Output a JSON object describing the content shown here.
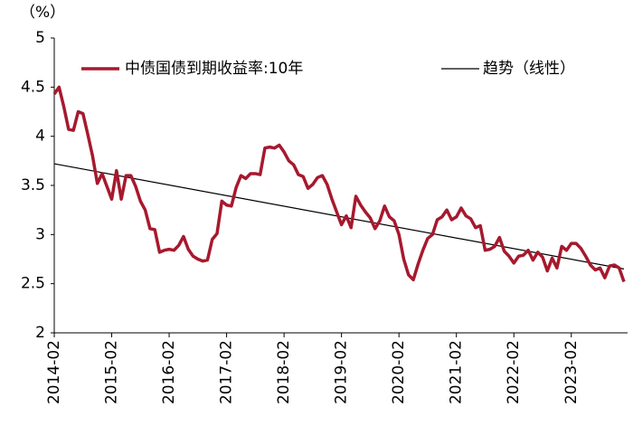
{
  "chart_data": {
    "type": "line",
    "y_label": "（%）",
    "categories": [
      "2014-02",
      null,
      null,
      null,
      null,
      null,
      null,
      null,
      null,
      null,
      null,
      null,
      "2015-02",
      null,
      null,
      null,
      null,
      null,
      null,
      null,
      null,
      null,
      null,
      null,
      "2016-02",
      null,
      null,
      null,
      null,
      null,
      null,
      null,
      null,
      null,
      null,
      null,
      "2017-02",
      null,
      null,
      null,
      null,
      null,
      null,
      null,
      null,
      null,
      null,
      null,
      "2018-02",
      null,
      null,
      null,
      null,
      null,
      null,
      null,
      null,
      null,
      null,
      null,
      "2019-02",
      null,
      null,
      null,
      null,
      null,
      null,
      null,
      null,
      null,
      null,
      null,
      "2020-02",
      null,
      null,
      null,
      null,
      null,
      null,
      null,
      null,
      null,
      null,
      null,
      "2021-02",
      null,
      null,
      null,
      null,
      null,
      null,
      null,
      null,
      null,
      null,
      null,
      "2022-02",
      null,
      null,
      null,
      null,
      null,
      null,
      null,
      null,
      null,
      null,
      null,
      "2023-02",
      null,
      null,
      null,
      null,
      null,
      null,
      null,
      null,
      null,
      null,
      null
    ],
    "series": [
      {
        "name": "中债国债到期收益率:10年",
        "color": "#a6192e",
        "values": [
          4.43,
          4.5,
          4.3,
          4.07,
          4.06,
          4.25,
          4.23,
          4.02,
          3.8,
          3.52,
          3.62,
          3.49,
          3.36,
          3.65,
          3.36,
          3.6,
          3.6,
          3.49,
          3.34,
          3.25,
          3.06,
          3.05,
          2.82,
          2.84,
          2.85,
          2.84,
          2.89,
          2.98,
          2.85,
          2.78,
          2.75,
          2.73,
          2.74,
          2.95,
          3.01,
          3.34,
          3.3,
          3.29,
          3.48,
          3.6,
          3.57,
          3.62,
          3.62,
          3.61,
          3.88,
          3.89,
          3.88,
          3.91,
          3.84,
          3.75,
          3.71,
          3.61,
          3.59,
          3.47,
          3.51,
          3.58,
          3.6,
          3.51,
          3.36,
          3.23,
          3.1,
          3.19,
          3.07,
          3.39,
          3.3,
          3.23,
          3.17,
          3.06,
          3.14,
          3.29,
          3.18,
          3.14,
          3.0,
          2.75,
          2.59,
          2.54,
          2.7,
          2.84,
          2.96,
          3.0,
          3.15,
          3.18,
          3.25,
          3.15,
          3.18,
          3.27,
          3.19,
          3.16,
          3.07,
          3.09,
          2.84,
          2.85,
          2.88,
          2.97,
          2.83,
          2.78,
          2.71,
          2.78,
          2.79,
          2.84,
          2.74,
          2.82,
          2.77,
          2.63,
          2.76,
          2.66,
          2.88,
          2.84,
          2.91,
          2.91,
          2.86,
          2.78,
          2.69,
          2.64,
          2.66,
          2.56,
          2.68,
          2.69,
          2.66,
          2.52
        ]
      }
    ],
    "trend": {
      "name": "趋势（线性）",
      "color": "#000000",
      "values": [
        3.72,
        2.65
      ]
    },
    "ylim": [
      2,
      5
    ],
    "yticks": [
      2,
      2.5,
      3,
      3.5,
      4,
      4.5,
      5
    ],
    "grid": false
  }
}
